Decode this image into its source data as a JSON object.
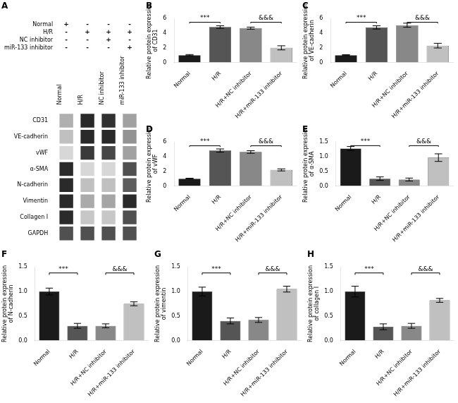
{
  "chart_data": [
    {
      "type": "heatmap",
      "title": "A",
      "x": [
        "Normal",
        "H/R",
        "NC inhibitor",
        "miR-133 inhibitor"
      ],
      "y": [
        "CD31",
        "VE-cadherin",
        "vWF",
        "α-SMA",
        "N-cadherin",
        "Vimentin",
        "Collagen I",
        "GAPDH"
      ],
      "cells": [
        [
          0.35,
          0.95,
          0.92,
          0.42
        ],
        [
          0.28,
          0.95,
          0.95,
          0.48
        ],
        [
          0.18,
          0.88,
          0.82,
          0.42
        ],
        [
          0.95,
          0.18,
          0.18,
          0.78
        ],
        [
          0.95,
          0.28,
          0.28,
          0.72
        ],
        [
          0.95,
          0.38,
          0.4,
          0.95
        ],
        [
          0.95,
          0.25,
          0.25,
          0.78
        ],
        [
          0.78,
          0.78,
          0.78,
          0.78
        ]
      ],
      "sign_rows": [
        {
          "name": "Normal",
          "signs": [
            "+",
            "-",
            "-",
            "-"
          ]
        },
        {
          "name": "H/R",
          "signs": [
            "-",
            "+",
            "+",
            "+"
          ]
        },
        {
          "name": "NC inhibitor",
          "signs": [
            "-",
            "-",
            "+",
            "-"
          ]
        },
        {
          "name": "miR-133 inhibitor",
          "signs": [
            "-",
            "-",
            "-",
            "+"
          ]
        }
      ],
      "grid": false
    },
    {
      "type": "bar",
      "title": "B",
      "categories": [
        "Normal",
        "H/R",
        "H/R+NC inhibitor",
        "H/R+miR-133 inhibitor"
      ],
      "values": [
        1.0,
        4.85,
        4.7,
        2.0
      ],
      "errors": [
        0.08,
        0.18,
        0.14,
        0.28
      ],
      "colors": [
        "#1a1a1a",
        "#555555",
        "#888888",
        "#c0c0c0"
      ],
      "ylabel": "Relative protein expression\nof CD31",
      "ylim": [
        0,
        6
      ],
      "yticks": [
        0,
        2,
        4,
        6
      ],
      "annotations": [
        {
          "text": "***",
          "x": [
            "Normal",
            "H/R"
          ],
          "y": 5.5
        },
        {
          "text": "&&&",
          "x": [
            "H/R+NC inhibitor",
            "H/R+miR-133 inhibitor"
          ],
          "y": 5.5
        }
      ],
      "grid": false
    },
    {
      "type": "bar",
      "title": "C",
      "categories": [
        "Normal",
        "H/R",
        "H/R+NC inhibitor",
        "H/R+miR-133 inhibitor"
      ],
      "values": [
        1.0,
        4.8,
        5.1,
        2.3
      ],
      "errors": [
        0.06,
        0.22,
        0.28,
        0.32
      ],
      "colors": [
        "#1a1a1a",
        "#555555",
        "#888888",
        "#c0c0c0"
      ],
      "ylabel": "Relative protein expression\nof VE-cadherin",
      "ylim": [
        0,
        6
      ],
      "yticks": [
        0,
        2,
        4,
        6
      ],
      "annotations": [
        {
          "text": "***",
          "x": [
            "Normal",
            "H/R"
          ],
          "y": 5.5
        },
        {
          "text": "&&&",
          "x": [
            "H/R+NC inhibitor",
            "H/R+miR-133 inhibitor"
          ],
          "y": 5.5
        }
      ],
      "grid": false
    },
    {
      "type": "bar",
      "title": "D",
      "categories": [
        "Normal",
        "H/R",
        "H/R+NC inhibitor",
        "H/R+miR-133 inhibitor"
      ],
      "values": [
        1.0,
        4.85,
        4.65,
        2.2
      ],
      "errors": [
        0.06,
        0.22,
        0.18,
        0.14
      ],
      "colors": [
        "#1a1a1a",
        "#555555",
        "#888888",
        "#c0c0c0"
      ],
      "ylabel": "Relative protein expression\nof vWF",
      "ylim": [
        0,
        6
      ],
      "yticks": [
        0,
        2,
        4,
        6
      ],
      "annotations": [
        {
          "text": "***",
          "x": [
            "Normal",
            "H/R"
          ],
          "y": 5.5
        },
        {
          "text": "&&&",
          "x": [
            "H/R+NC inhibitor",
            "H/R+miR-133 inhibitor"
          ],
          "y": 5.5
        }
      ],
      "grid": false
    },
    {
      "type": "bar",
      "title": "E",
      "categories": [
        "Normal",
        "H/R",
        "H/R+NC inhibitor",
        "H/R+miR-133 inhibitor"
      ],
      "values": [
        1.28,
        0.25,
        0.22,
        0.97
      ],
      "errors": [
        0.07,
        0.06,
        0.05,
        0.13
      ],
      "colors": [
        "#1a1a1a",
        "#555555",
        "#888888",
        "#c0c0c0"
      ],
      "ylabel": "Relative protein expression\nof α-SMA",
      "ylim": [
        0,
        1.5
      ],
      "yticks": [
        {
          "value": 0,
          "label": "0.0"
        },
        0.5,
        {
          "value": 1,
          "label": "1.0"
        },
        1.5
      ],
      "annotations": [
        {
          "text": "***",
          "x": [
            "Normal",
            "H/R"
          ],
          "y": 1.38
        },
        {
          "text": "&&&",
          "x": [
            "H/R+NC inhibitor",
            "H/R+miR-133 inhibitor"
          ],
          "y": 1.38
        }
      ],
      "grid": false
    },
    {
      "type": "bar",
      "title": "F",
      "categories": [
        "Normal",
        "H/R",
        "H/R+NC inhibitor",
        "H/R+miR-133 inhibitor"
      ],
      "values": [
        1.0,
        0.3,
        0.3,
        0.75
      ],
      "errors": [
        0.07,
        0.05,
        0.04,
        0.04
      ],
      "colors": [
        "#1a1a1a",
        "#555555",
        "#888888",
        "#c0c0c0"
      ],
      "ylabel": "Relative protein expression\nof N-cadherin",
      "ylim": [
        0,
        1.5
      ],
      "yticks": [
        {
          "value": 0,
          "label": "0.0"
        },
        0.5,
        {
          "value": 1,
          "label": "1.0"
        },
        1.5
      ],
      "annotations": [
        {
          "text": "***",
          "x": [
            "Normal",
            "H/R"
          ],
          "y": 1.38
        },
        {
          "text": "&&&",
          "x": [
            "H/R+NC inhibitor",
            "H/R+miR-133 inhibitor"
          ],
          "y": 1.38
        }
      ],
      "grid": false
    },
    {
      "type": "bar",
      "title": "G",
      "categories": [
        "Normal",
        "H/R",
        "H/R+NC inhibitor",
        "H/R+miR-133 inhibitor"
      ],
      "values": [
        1.0,
        0.4,
        0.42,
        1.05
      ],
      "errors": [
        0.09,
        0.06,
        0.05,
        0.06
      ],
      "colors": [
        "#1a1a1a",
        "#555555",
        "#888888",
        "#c0c0c0"
      ],
      "ylabel": "Relative protein expression\nof vimentin",
      "ylim": [
        0,
        1.5
      ],
      "yticks": [
        {
          "value": 0,
          "label": "0.0"
        },
        0.5,
        {
          "value": 1,
          "label": "1.0"
        },
        1.5
      ],
      "annotations": [
        {
          "text": "***",
          "x": [
            "Normal",
            "H/R"
          ],
          "y": 1.38
        },
        {
          "text": "&&&",
          "x": [
            "H/R+NC inhibitor",
            "H/R+miR-133 inhibitor"
          ],
          "y": 1.38
        }
      ],
      "grid": false
    },
    {
      "type": "bar",
      "title": "H",
      "categories": [
        "Normal",
        "H/R",
        "H/R+NC inhibitor",
        "H/R+miR-133 inhibitor"
      ],
      "values": [
        1.0,
        0.28,
        0.3,
        0.82
      ],
      "errors": [
        0.11,
        0.06,
        0.05,
        0.04
      ],
      "colors": [
        "#1a1a1a",
        "#555555",
        "#888888",
        "#c0c0c0"
      ],
      "ylabel": "Relative protein expression\nof collagen I",
      "ylim": [
        0,
        1.5
      ],
      "yticks": [
        {
          "value": 0,
          "label": "0.0"
        },
        0.5,
        {
          "value": 1,
          "label": "1.0"
        },
        1.5
      ],
      "annotations": [
        {
          "text": "***",
          "x": [
            "Normal",
            "H/R"
          ],
          "y": 1.38
        },
        {
          "text": "&&&",
          "x": [
            "H/R+NC inhibitor",
            "H/R+miR-133 inhibitor"
          ],
          "y": 1.38
        }
      ],
      "grid": false
    }
  ]
}
